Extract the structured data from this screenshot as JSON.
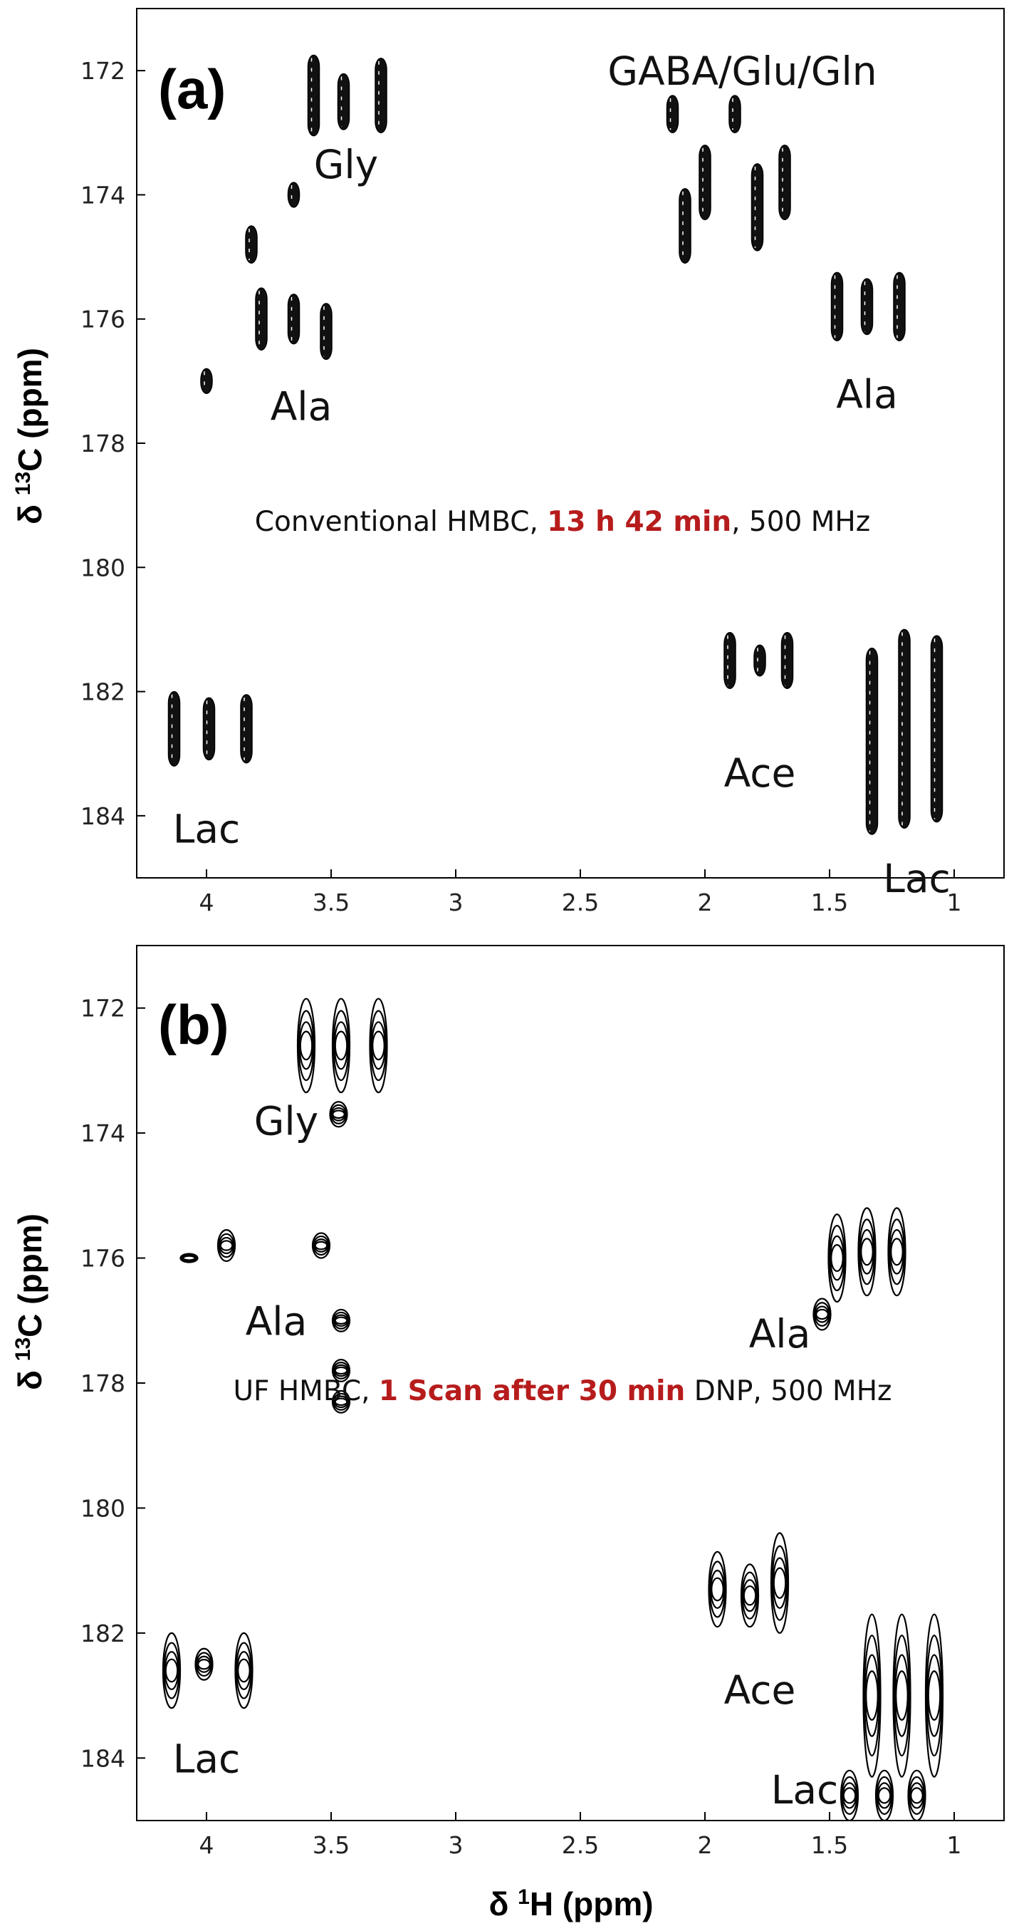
{
  "figure": {
    "xlabel_prefix": "δ ",
    "xlabel_sup": "1",
    "xlabel_main": "H (ppm)",
    "ylabel_prefix": "δ ",
    "ylabel_sup": "13",
    "ylabel_main": "C (ppm)"
  },
  "chart_data": [
    {
      "type": "contour",
      "panel_label": "(a)",
      "annotation": {
        "pre": "Conventional HMBC, ",
        "highlight": "13 h 42 min",
        "post": ", 500 MHz"
      },
      "highlight_color": "#b71c1c",
      "contour_style": "dense-filled",
      "xlim": [
        4.28,
        0.8
      ],
      "ylim": [
        185,
        171
      ],
      "x_ticks": [
        4,
        3.5,
        3,
        2.5,
        2,
        1.5,
        1
      ],
      "y_ticks": [
        172,
        174,
        176,
        178,
        180,
        182,
        184
      ],
      "xlabel": "",
      "ylabel": "δ 13C (ppm)",
      "labels": [
        {
          "text": "Gly",
          "x": 3.44,
          "y": 173.5
        },
        {
          "text": "GABA/Glu/Gln",
          "x": 1.85,
          "y": 172.0
        },
        {
          "text": "Ala",
          "x": 3.62,
          "y": 177.4
        },
        {
          "text": "Ala",
          "x": 1.35,
          "y": 177.2
        },
        {
          "text": "Ace",
          "x": 1.78,
          "y": 183.3
        },
        {
          "text": "Lac",
          "x": 4.0,
          "y": 184.2
        },
        {
          "text": "Lac",
          "x": 1.15,
          "y": 185.0
        }
      ],
      "peaks": [
        {
          "x": 3.57,
          "y": 172.4,
          "h": 1.3
        },
        {
          "x": 3.45,
          "y": 172.5,
          "h": 0.9
        },
        {
          "x": 3.3,
          "y": 172.4,
          "h": 1.2
        },
        {
          "x": 3.65,
          "y": 174.0,
          "h": 0.4
        },
        {
          "x": 3.82,
          "y": 174.8,
          "h": 0.6
        },
        {
          "x": 3.78,
          "y": 176.0,
          "h": 1.0
        },
        {
          "x": 3.65,
          "y": 176.0,
          "h": 0.8
        },
        {
          "x": 3.52,
          "y": 176.2,
          "h": 0.9
        },
        {
          "x": 4.0,
          "y": 177.0,
          "h": 0.4
        },
        {
          "x": 2.13,
          "y": 172.7,
          "h": 0.6
        },
        {
          "x": 1.88,
          "y": 172.7,
          "h": 0.6
        },
        {
          "x": 2.08,
          "y": 174.5,
          "h": 1.2
        },
        {
          "x": 2.0,
          "y": 173.8,
          "h": 1.2
        },
        {
          "x": 1.79,
          "y": 174.2,
          "h": 1.4
        },
        {
          "x": 1.68,
          "y": 173.8,
          "h": 1.2
        },
        {
          "x": 1.47,
          "y": 175.8,
          "h": 1.1
        },
        {
          "x": 1.35,
          "y": 175.8,
          "h": 0.9
        },
        {
          "x": 1.22,
          "y": 175.8,
          "h": 1.1
        },
        {
          "x": 1.9,
          "y": 181.5,
          "h": 0.9
        },
        {
          "x": 1.78,
          "y": 181.5,
          "h": 0.5
        },
        {
          "x": 1.67,
          "y": 181.5,
          "h": 0.9
        },
        {
          "x": 4.13,
          "y": 182.6,
          "h": 1.2
        },
        {
          "x": 3.99,
          "y": 182.6,
          "h": 1.0
        },
        {
          "x": 3.84,
          "y": 182.6,
          "h": 1.1
        },
        {
          "x": 1.33,
          "y": 182.8,
          "h": 3.0
        },
        {
          "x": 1.2,
          "y": 182.6,
          "h": 3.2
        },
        {
          "x": 1.07,
          "y": 182.6,
          "h": 3.0
        }
      ]
    },
    {
      "type": "contour",
      "panel_label": "(b)",
      "annotation": {
        "pre": "UF HMBC, ",
        "highlight": "1 Scan after 30 min",
        "post": " DNP, 500 MHz"
      },
      "highlight_color": "#b71c1c",
      "contour_style": "open-contours",
      "xlim": [
        4.28,
        0.8
      ],
      "ylim": [
        185,
        171
      ],
      "x_ticks": [
        4,
        3.5,
        3,
        2.5,
        2,
        1.5,
        1
      ],
      "y_ticks": [
        172,
        174,
        176,
        178,
        180,
        182,
        184
      ],
      "xlabel": "δ 1H (ppm)",
      "ylabel": "δ 13C (ppm)",
      "labels": [
        {
          "text": "Gly",
          "x": 3.68,
          "y": 173.8
        },
        {
          "text": "Ala",
          "x": 3.72,
          "y": 177.0
        },
        {
          "text": "Ala",
          "x": 1.7,
          "y": 177.2
        },
        {
          "text": "Ace",
          "x": 1.78,
          "y": 182.9
        },
        {
          "text": "Lac",
          "x": 4.0,
          "y": 184.0
        },
        {
          "text": "Lac",
          "x": 1.6,
          "y": 184.5
        }
      ],
      "peaks": [
        {
          "x": 3.6,
          "y": 172.6,
          "h": 1.5
        },
        {
          "x": 3.46,
          "y": 172.6,
          "h": 1.5
        },
        {
          "x": 3.31,
          "y": 172.6,
          "h": 1.5
        },
        {
          "x": 3.47,
          "y": 173.7,
          "h": 0.4
        },
        {
          "x": 4.07,
          "y": 176.0,
          "h": 0.1
        },
        {
          "x": 3.92,
          "y": 175.8,
          "h": 0.5
        },
        {
          "x": 3.54,
          "y": 175.8,
          "h": 0.4
        },
        {
          "x": 3.46,
          "y": 177.0,
          "h": 0.35
        },
        {
          "x": 3.46,
          "y": 177.8,
          "h": 0.35
        },
        {
          "x": 3.46,
          "y": 178.3,
          "h": 0.35
        },
        {
          "x": 1.47,
          "y": 176.0,
          "h": 1.4
        },
        {
          "x": 1.35,
          "y": 175.9,
          "h": 1.4
        },
        {
          "x": 1.23,
          "y": 175.9,
          "h": 1.4
        },
        {
          "x": 1.53,
          "y": 176.9,
          "h": 0.5
        },
        {
          "x": 1.95,
          "y": 181.3,
          "h": 1.2
        },
        {
          "x": 1.82,
          "y": 181.4,
          "h": 1.0
        },
        {
          "x": 1.7,
          "y": 181.2,
          "h": 1.6
        },
        {
          "x": 4.14,
          "y": 182.6,
          "h": 1.2
        },
        {
          "x": 4.01,
          "y": 182.5,
          "h": 0.5
        },
        {
          "x": 3.85,
          "y": 182.6,
          "h": 1.2
        },
        {
          "x": 1.33,
          "y": 183.0,
          "h": 2.6
        },
        {
          "x": 1.21,
          "y": 183.0,
          "h": 2.6
        },
        {
          "x": 1.08,
          "y": 183.0,
          "h": 2.6
        },
        {
          "x": 1.42,
          "y": 184.6,
          "h": 0.8
        },
        {
          "x": 1.28,
          "y": 184.6,
          "h": 0.8
        },
        {
          "x": 1.15,
          "y": 184.6,
          "h": 0.8
        }
      ]
    }
  ]
}
